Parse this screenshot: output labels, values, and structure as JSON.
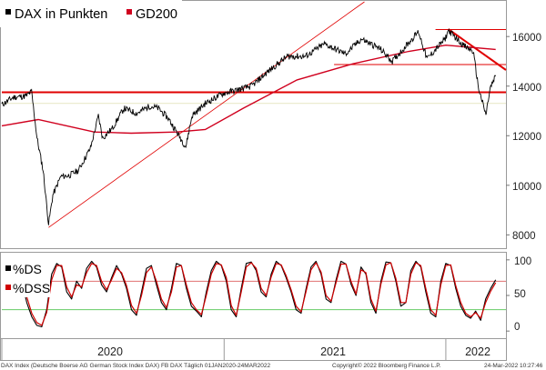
{
  "chart_data": {
    "type": "line",
    "footer": {
      "source": "DAX Index (Deutsche Boerse AG German Stock Index DAX) FB DAX  Täglich 01JAN2020-24MAR2022",
      "copyright": "Copyright© 2022 Bloomberg Finance L.P.",
      "timestamp": "24-Mar-2022 10:27:46"
    },
    "x_ticks": [
      "2020",
      "2021",
      "2022"
    ],
    "upper_panel": {
      "legend": [
        "DAX in Punkten",
        "GD200"
      ],
      "y_ticks": [
        "16000",
        "14000",
        "12000",
        "10000",
        "8000"
      ],
      "ylim": [
        7500,
        17400
      ],
      "colors": {
        "dax": "#000000",
        "gd200": "#d0001e",
        "lines": "#e00000"
      },
      "series": [
        {
          "name": "DAX in Punkten",
          "points": [
            [
              "2020-01-01",
              13250
            ],
            [
              "2020-01-20",
              13550
            ],
            [
              "2020-02-10",
              13600
            ],
            [
              "2020-02-19",
              13780
            ],
            [
              "2020-02-28",
              11900
            ],
            [
              "2020-03-09",
              10600
            ],
            [
              "2020-03-18",
              8440
            ],
            [
              "2020-03-25",
              9600
            ],
            [
              "2020-04-07",
              10350
            ],
            [
              "2020-04-21",
              10400
            ],
            [
              "2020-05-06",
              10600
            ],
            [
              "2020-05-26",
              11500
            ],
            [
              "2020-06-08",
              12800
            ],
            [
              "2020-06-15",
              11900
            ],
            [
              "2020-07-01",
              12300
            ],
            [
              "2020-07-20",
              13100
            ],
            [
              "2020-08-10",
              12900
            ],
            [
              "2020-09-01",
              13200
            ],
            [
              "2020-09-15",
              13100
            ],
            [
              "2020-10-01",
              12700
            ],
            [
              "2020-10-30",
              11550
            ],
            [
              "2020-11-09",
              12800
            ],
            [
              "2020-12-01",
              13300
            ],
            [
              "2020-12-30",
              13700
            ],
            [
              "2021-01-15",
              13800
            ],
            [
              "2021-02-15",
              14000
            ],
            [
              "2021-03-15",
              14600
            ],
            [
              "2021-04-15",
              15200
            ],
            [
              "2021-05-15",
              15200
            ],
            [
              "2021-06-15",
              15700
            ],
            [
              "2021-07-20",
              15300
            ],
            [
              "2021-08-15",
              15900
            ],
            [
              "2021-09-15",
              15500
            ],
            [
              "2021-10-05",
              15000
            ],
            [
              "2021-11-17",
              16200
            ],
            [
              "2021-12-01",
              15100
            ],
            [
              "2021-12-31",
              15900
            ],
            [
              "2022-01-05",
              16250
            ],
            [
              "2022-02-01",
              15600
            ],
            [
              "2022-02-15",
              15400
            ],
            [
              "2022-02-24",
              13900
            ],
            [
              "2022-03-08",
              12830
            ],
            [
              "2022-03-15",
              13900
            ],
            [
              "2022-03-24",
              14400
            ]
          ]
        },
        {
          "name": "GD200",
          "points": [
            [
              "2020-01-01",
              12400
            ],
            [
              "2020-03-01",
              12650
            ],
            [
              "2020-06-01",
              12150
            ],
            [
              "2020-08-01",
              12100
            ],
            [
              "2020-10-15",
              12150
            ],
            [
              "2020-12-01",
              12250
            ],
            [
              "2021-02-01",
              13100
            ],
            [
              "2021-05-01",
              14250
            ],
            [
              "2021-08-01",
              14900
            ],
            [
              "2021-11-01",
              15400
            ],
            [
              "2022-01-01",
              15650
            ],
            [
              "2022-03-24",
              15480
            ]
          ]
        }
      ],
      "annotations": [
        {
          "type": "hline",
          "y": 13750,
          "from": "2020-01-01",
          "to": "2022-04-10",
          "width": 2
        },
        {
          "type": "hline",
          "y": 16280,
          "from": "2021-12-15",
          "to": "2022-04-10",
          "width": 1
        },
        {
          "type": "hline",
          "y": 14870,
          "from": "2021-07-01",
          "to": "2022-04-10",
          "width": 1
        },
        {
          "type": "hline",
          "y": 13300,
          "from": "2020-01-01",
          "to": "2022-04-10",
          "width": 0.6,
          "color": "#d8d8a0"
        },
        {
          "type": "trend",
          "from": [
            "2020-03-18",
            8300
          ],
          "to": [
            "2021-08-20",
            17400
          ],
          "width": 0.8
        },
        {
          "type": "trend",
          "from": [
            "2022-01-05",
            16300
          ],
          "to": [
            "2022-04-10",
            14650
          ],
          "width": 2
        }
      ]
    },
    "lower_panel": {
      "legend": [
        "%DS",
        "%DSS"
      ],
      "y_ticks": [
        "100",
        "50",
        "0"
      ],
      "ylim": [
        -10,
        110
      ],
      "reference_lines": [
        {
          "y": 70,
          "color": "#e07070"
        },
        {
          "y": 30,
          "color": "#66cc66"
        }
      ],
      "series": [
        {
          "name": "%DS",
          "color": "#000000",
          "values": [
            58,
            85,
            97,
            90,
            70,
            40,
            20,
            8,
            6,
            30,
            80,
            95,
            90,
            55,
            45,
            70,
            60,
            88,
            98,
            90,
            65,
            55,
            75,
            92,
            80,
            60,
            30,
            22,
            55,
            88,
            92,
            65,
            40,
            30,
            60,
            95,
            92,
            60,
            35,
            28,
            20,
            55,
            85,
            98,
            92,
            70,
            30,
            20,
            60,
            95,
            97,
            85,
            55,
            48,
            80,
            98,
            92,
            75,
            55,
            30,
            25,
            60,
            90,
            98,
            80,
            45,
            40,
            72,
            98,
            94,
            66,
            50,
            90,
            80,
            40,
            25,
            70,
            97,
            96,
            70,
            35,
            40,
            85,
            98,
            90,
            55,
            25,
            20,
            70,
            95,
            92,
            60,
            35,
            22,
            18,
            28,
            15,
            45,
            60,
            72
          ]
        },
        {
          "name": "%DSS",
          "color": "#d00000",
          "values": [
            55,
            80,
            94,
            92,
            75,
            48,
            25,
            12,
            8,
            26,
            72,
            92,
            92,
            62,
            48,
            65,
            62,
            82,
            95,
            92,
            70,
            58,
            72,
            88,
            82,
            64,
            36,
            25,
            50,
            82,
            90,
            70,
            45,
            33,
            55,
            90,
            92,
            65,
            40,
            30,
            23,
            50,
            80,
            95,
            93,
            75,
            36,
            22,
            55,
            90,
            96,
            88,
            60,
            50,
            76,
            95,
            93,
            78,
            58,
            35,
            27,
            56,
            86,
            96,
            83,
            50,
            42,
            68,
            94,
            94,
            70,
            52,
            86,
            82,
            45,
            28,
            66,
            93,
            96,
            74,
            40,
            40,
            80,
            96,
            92,
            60,
            30,
            22,
            65,
            92,
            93,
            64,
            40,
            25,
            20,
            26,
            18,
            40,
            56,
            68
          ]
        }
      ]
    }
  }
}
